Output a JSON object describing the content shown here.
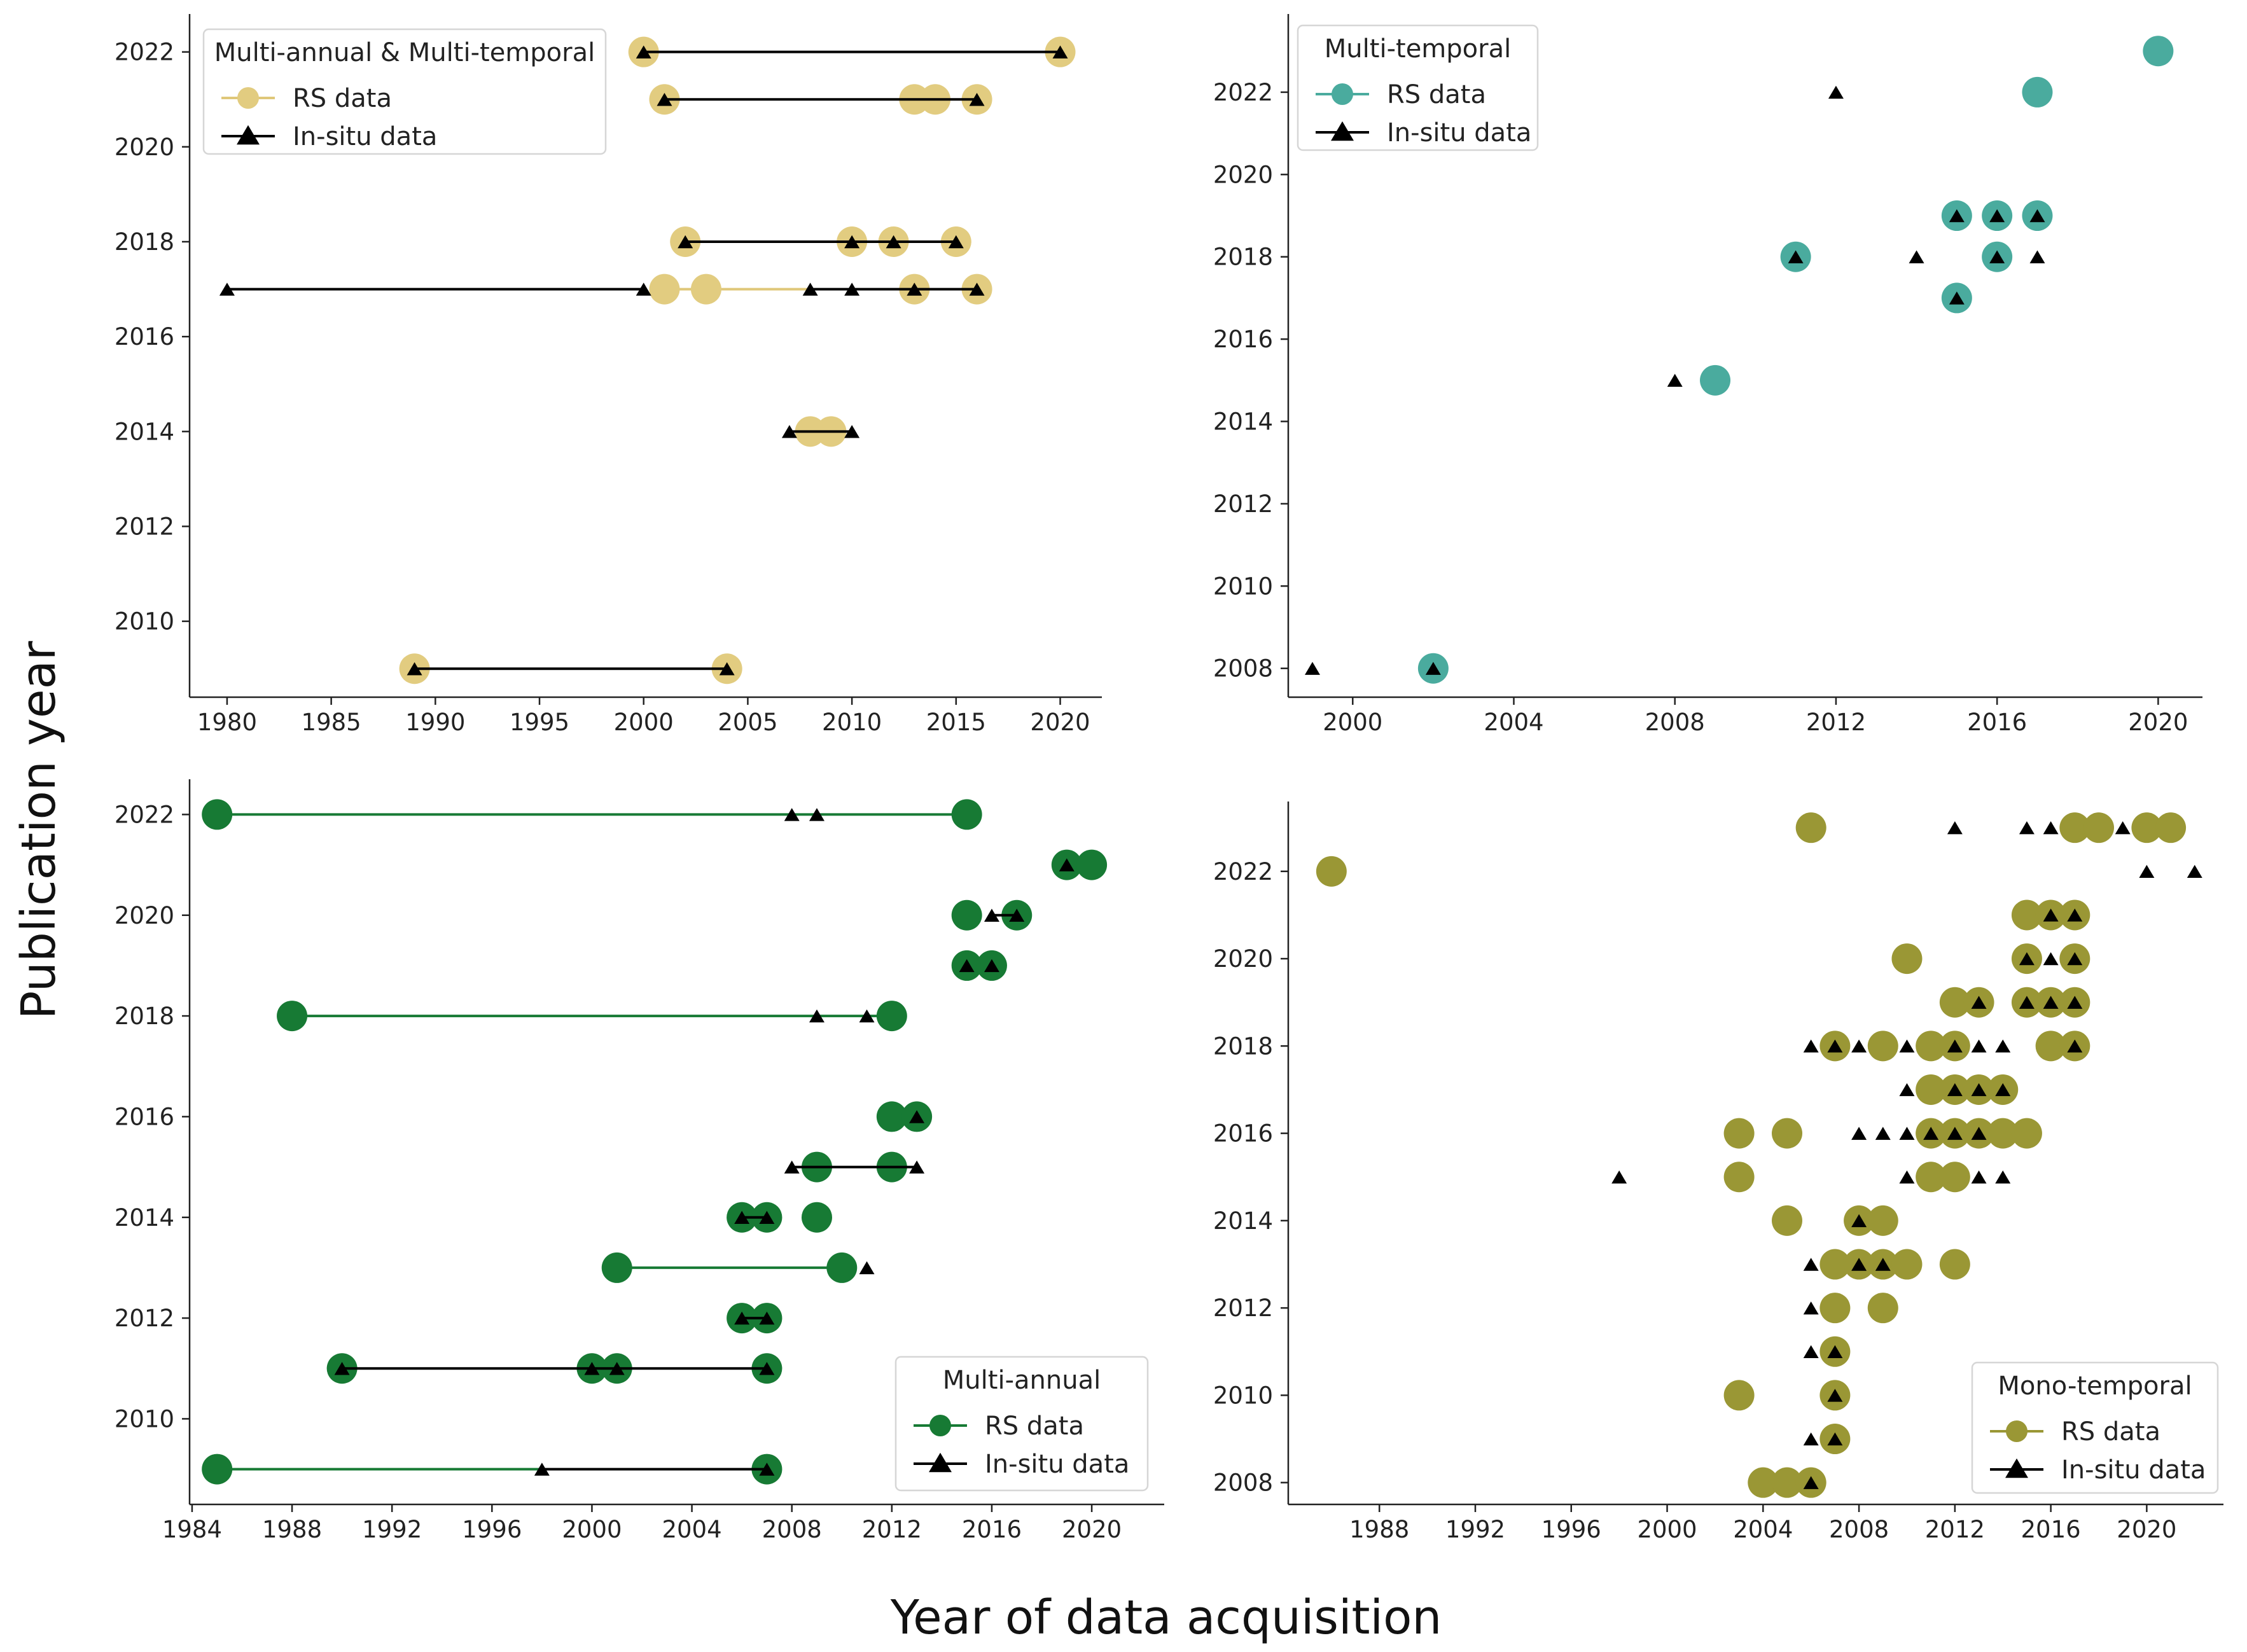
{
  "figure": {
    "ylabel": "Publication year",
    "xlabel": "Year of data acquisition"
  },
  "chart_data": [
    {
      "type": "scatter",
      "title": "Multi-annual & Multi-temporal",
      "legend": {
        "title": "Multi-annual & Multi-temporal",
        "rs_label": "RS data",
        "insitu_label": "In-situ data",
        "placement": "top-left"
      },
      "colors": {
        "rs": "#e2cc80",
        "rs_line": "#dfc779",
        "insitu": "#000000"
      },
      "xlim": [
        1978.2,
        2022
      ],
      "ylim": [
        2008.4,
        2022.8
      ],
      "xticks": [
        1980,
        1985,
        1990,
        1995,
        2000,
        2005,
        2010,
        2015,
        2020
      ],
      "yticks": [
        2010,
        2012,
        2014,
        2016,
        2018,
        2020,
        2022
      ],
      "studies": [
        {
          "pub_year": 2022,
          "rs": [
            2000,
            2020
          ],
          "insitu": [
            2000,
            2020
          ],
          "rs_line": false,
          "insitu_line": [
            2000,
            2020
          ]
        },
        {
          "pub_year": 2021,
          "rs": [
            2001,
            2013,
            2014,
            2016
          ],
          "insitu": [
            2001,
            2016
          ],
          "rs_line": false,
          "insitu_line": [
            2001,
            2016
          ]
        },
        {
          "pub_year": 2018,
          "rs": [
            2002,
            2010,
            2012,
            2015
          ],
          "insitu": [
            2002,
            2010,
            2012,
            2015
          ],
          "rs_line": false,
          "insitu_line": [
            2002,
            2015
          ]
        },
        {
          "pub_year": 2017,
          "rs": [
            2001,
            2003,
            2013,
            2016
          ],
          "insitu": [
            1980,
            2000,
            2008,
            2010,
            2013,
            2016
          ],
          "rs_line": [
            2001,
            2008
          ],
          "insitu_line": [
            1980,
            2000
          ]
        },
        {
          "pub_year": 2017,
          "rs": [],
          "insitu": [],
          "rs_line": false,
          "insitu_line": [
            2008,
            2016
          ]
        },
        {
          "pub_year": 2014,
          "rs": [
            2008,
            2009
          ],
          "insitu": [
            2007,
            2010
          ],
          "rs_line": false,
          "insitu_line": [
            2007,
            2010
          ]
        },
        {
          "pub_year": 2009,
          "rs": [
            1989,
            2004
          ],
          "insitu": [
            1989,
            2004
          ],
          "rs_line": false,
          "insitu_line": [
            1989,
            2004
          ]
        }
      ]
    },
    {
      "type": "scatter",
      "title": "Multi-temporal",
      "legend": {
        "title": "Multi-temporal",
        "rs_label": "RS data",
        "insitu_label": "In-situ data",
        "placement": "top-left"
      },
      "colors": {
        "rs": "#4aab9e",
        "rs_line": "#4aab9e",
        "insitu": "#000000"
      },
      "xlim": [
        1998.4,
        2021.1
      ],
      "ylim": [
        2007.3,
        2023.9
      ],
      "xticks": [
        2000,
        2004,
        2008,
        2012,
        2016,
        2020
      ],
      "yticks": [
        2008,
        2010,
        2012,
        2014,
        2016,
        2018,
        2020,
        2022
      ],
      "studies": [
        {
          "pub_year": 2023,
          "rs": [
            2020
          ],
          "insitu": []
        },
        {
          "pub_year": 2022,
          "rs": [
            2017
          ],
          "insitu": [
            2012
          ]
        },
        {
          "pub_year": 2019,
          "rs": [
            2015,
            2016,
            2017
          ],
          "insitu": [
            2015,
            2016,
            2017
          ]
        },
        {
          "pub_year": 2018,
          "rs": [
            2011,
            2016
          ],
          "insitu": [
            2011,
            2014,
            2016,
            2017
          ]
        },
        {
          "pub_year": 2017,
          "rs": [
            2015
          ],
          "insitu": [
            2015
          ]
        },
        {
          "pub_year": 2015,
          "rs": [
            2009
          ],
          "insitu": [
            2008
          ]
        },
        {
          "pub_year": 2008,
          "rs": [
            2002
          ],
          "insitu": [
            1999,
            2002
          ]
        }
      ]
    },
    {
      "type": "scatter",
      "title": "Multi-annual",
      "legend": {
        "title": "Multi-annual",
        "rs_label": "RS data",
        "insitu_label": "In-situ data",
        "placement": "bottom-right"
      },
      "colors": {
        "rs": "#177a34",
        "rs_line": "#177a34",
        "insitu": "#000000"
      },
      "xlim": [
        1983.9,
        2022.9
      ],
      "ylim": [
        2008.3,
        2022.7
      ],
      "xticks": [
        1984,
        1988,
        1992,
        1996,
        2000,
        2004,
        2008,
        2012,
        2016,
        2020
      ],
      "yticks": [
        2010,
        2012,
        2014,
        2016,
        2018,
        2020,
        2022
      ],
      "studies": [
        {
          "pub_year": 2022,
          "rs": [
            1985,
            2015
          ],
          "insitu": [
            2008,
            2009
          ],
          "rs_line": [
            1985,
            2015
          ],
          "insitu_line": false
        },
        {
          "pub_year": 2021,
          "rs": [
            2019,
            2020
          ],
          "insitu": [
            2019
          ],
          "rs_line": false,
          "insitu_line": false
        },
        {
          "pub_year": 2020,
          "rs": [
            2015,
            2017
          ],
          "insitu": [
            2016,
            2017
          ],
          "rs_line": false,
          "insitu_line": [
            2016,
            2017
          ]
        },
        {
          "pub_year": 2019,
          "rs": [
            2015,
            2016
          ],
          "insitu": [
            2015,
            2016
          ],
          "rs_line": false,
          "insitu_line": false
        },
        {
          "pub_year": 2018,
          "rs": [
            1988,
            2012
          ],
          "insitu": [
            2009,
            2011
          ],
          "rs_line": [
            1988,
            2012
          ],
          "insitu_line": false
        },
        {
          "pub_year": 2016,
          "rs": [
            2012,
            2013
          ],
          "insitu": [
            2013
          ],
          "rs_line": false,
          "insitu_line": false
        },
        {
          "pub_year": 2015,
          "rs": [
            2009,
            2012
          ],
          "insitu": [
            2008,
            2013
          ],
          "rs_line": false,
          "insitu_line": [
            2008,
            2013
          ]
        },
        {
          "pub_year": 2014,
          "rs": [
            2006,
            2007,
            2009
          ],
          "insitu": [
            2006,
            2007
          ],
          "rs_line": false,
          "insitu_line": [
            2006,
            2007
          ]
        },
        {
          "pub_year": 2013,
          "rs": [
            2001,
            2010
          ],
          "insitu": [
            2011
          ],
          "rs_line": [
            2001,
            2010
          ],
          "insitu_line": false
        },
        {
          "pub_year": 2012,
          "rs": [
            2006,
            2007
          ],
          "insitu": [
            2006,
            2007
          ],
          "rs_line": false,
          "insitu_line": [
            2006,
            2007
          ]
        },
        {
          "pub_year": 2011,
          "rs": [
            1990,
            2000,
            2001,
            2007
          ],
          "insitu": [
            1990,
            2000,
            2001,
            2007
          ],
          "rs_line": false,
          "insitu_line": [
            1990,
            2007
          ]
        },
        {
          "pub_year": 2009,
          "rs": [
            1985,
            2007
          ],
          "insitu": [
            1998,
            2007
          ],
          "rs_line": [
            1985,
            1998
          ],
          "insitu_line": [
            1998,
            2007
          ]
        }
      ]
    },
    {
      "type": "scatter",
      "title": "Mono-temporal",
      "legend": {
        "title": "Mono-temporal",
        "rs_label": "RS data",
        "insitu_label": "In-situ data",
        "placement": "bottom-right"
      },
      "colors": {
        "rs": "#9a9735",
        "rs_line": "#9a9735",
        "insitu": "#000000"
      },
      "xlim": [
        1984.2,
        2023.2
      ],
      "ylim": [
        2007.5,
        2023.6
      ],
      "xticks": [
        1988,
        1992,
        1996,
        2000,
        2004,
        2008,
        2012,
        2016,
        2020
      ],
      "yticks": [
        2008,
        2010,
        2012,
        2014,
        2016,
        2018,
        2020,
        2022
      ],
      "studies": [
        {
          "pub_year": 2023,
          "rs": [
            2006,
            2017,
            2018,
            2020,
            2021
          ],
          "insitu": [
            2012,
            2015,
            2016,
            2019
          ]
        },
        {
          "pub_year": 2022,
          "rs": [
            1986
          ],
          "insitu": [
            2020,
            2022
          ]
        },
        {
          "pub_year": 2021,
          "rs": [
            2015,
            2016,
            2017
          ],
          "insitu": [
            2016,
            2017
          ]
        },
        {
          "pub_year": 2020,
          "rs": [
            2010,
            2015,
            2017
          ],
          "insitu": [
            2015,
            2016,
            2017
          ]
        },
        {
          "pub_year": 2019,
          "rs": [
            2012,
            2013,
            2015,
            2016,
            2017
          ],
          "insitu": [
            2013,
            2015,
            2016,
            2017
          ]
        },
        {
          "pub_year": 2018,
          "rs": [
            2007,
            2009,
            2011,
            2012,
            2016,
            2017
          ],
          "insitu": [
            2006,
            2007,
            2008,
            2010,
            2012,
            2013,
            2014,
            2017
          ]
        },
        {
          "pub_year": 2017,
          "rs": [
            2011,
            2012,
            2013,
            2014
          ],
          "insitu": [
            2010,
            2012,
            2013,
            2014
          ]
        },
        {
          "pub_year": 2016,
          "rs": [
            2003,
            2005,
            2011,
            2012,
            2013,
            2014,
            2015
          ],
          "insitu": [
            2008,
            2009,
            2010,
            2011,
            2012,
            2013
          ]
        },
        {
          "pub_year": 2015,
          "rs": [
            2003,
            2011,
            2012
          ],
          "insitu": [
            1998,
            2010,
            2013,
            2014
          ]
        },
        {
          "pub_year": 2014,
          "rs": [
            2005,
            2008,
            2009
          ],
          "insitu": [
            2008
          ]
        },
        {
          "pub_year": 2013,
          "rs": [
            2007,
            2008,
            2009,
            2010,
            2012
          ],
          "insitu": [
            2006,
            2008,
            2009
          ]
        },
        {
          "pub_year": 2012,
          "rs": [
            2007,
            2009
          ],
          "insitu": [
            2006
          ]
        },
        {
          "pub_year": 2011,
          "rs": [
            2007
          ],
          "insitu": [
            2006,
            2007
          ]
        },
        {
          "pub_year": 2010,
          "rs": [
            2003,
            2007
          ],
          "insitu": [
            2007
          ]
        },
        {
          "pub_year": 2009,
          "rs": [
            2007
          ],
          "insitu": [
            2006,
            2007
          ]
        },
        {
          "pub_year": 2008,
          "rs": [
            2004,
            2005,
            2006
          ],
          "insitu": [
            2006
          ]
        }
      ]
    }
  ]
}
